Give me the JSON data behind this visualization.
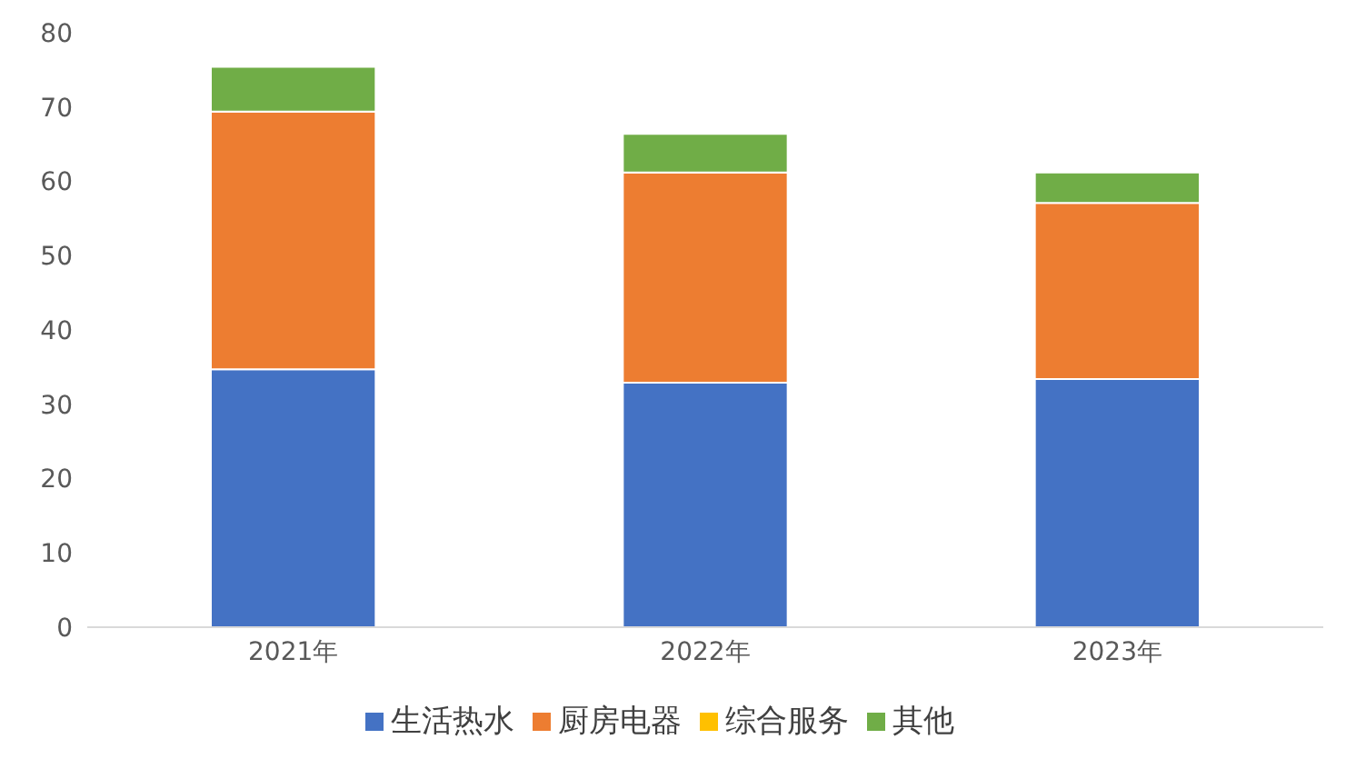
{
  "chart_data": {
    "type": "bar",
    "stacked": true,
    "categories": [
      "2021年",
      "2022年",
      "2023年"
    ],
    "series": [
      {
        "name": "生活热水",
        "color": "#4472c4",
        "values": [
          34.7,
          32.9,
          33.4
        ]
      },
      {
        "name": "厨房电器",
        "color": "#ed7d31",
        "values": [
          34.7,
          28.3,
          23.7
        ]
      },
      {
        "name": "综合服务",
        "color": "#ffc000",
        "values": [
          0,
          0,
          0
        ]
      },
      {
        "name": "其他",
        "color": "#70ad47",
        "values": [
          6.0,
          5.2,
          4.1
        ]
      }
    ],
    "ylim": [
      0,
      80
    ],
    "yticks": [
      0,
      10,
      20,
      30,
      40,
      50,
      60,
      70,
      80
    ],
    "grid": false,
    "legend": "bottom"
  }
}
